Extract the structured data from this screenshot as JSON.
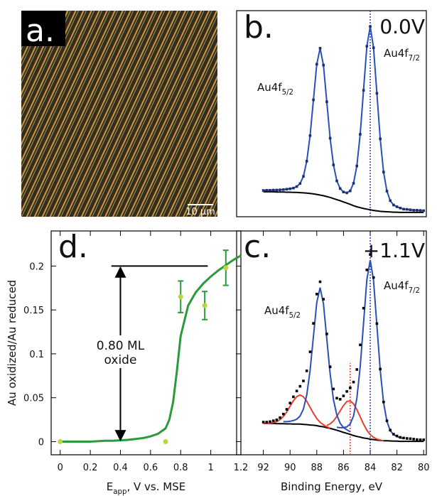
{
  "panel_a": {
    "label": "a.",
    "scale_bar": "10 µm"
  },
  "chart_data": [
    {
      "type": "line",
      "label": "b.",
      "condition": "0.0V",
      "peaks": [
        {
          "main": "Au4f",
          "sub": "5/2"
        },
        {
          "main": "Au4f",
          "sub": "7/2"
        }
      ],
      "x": [
        92,
        91.75,
        91.5,
        91.25,
        91,
        90.75,
        90.5,
        90.25,
        90,
        89.75,
        89.5,
        89.25,
        89,
        88.75,
        88.5,
        88.25,
        88,
        87.75,
        87.5,
        87.25,
        87,
        86.75,
        86.5,
        86.25,
        86,
        85.75,
        85.5,
        85.25,
        85,
        84.75,
        84.5,
        84.25,
        84,
        83.75,
        83.5,
        83.25,
        83,
        82.75,
        82.5,
        82.25,
        82,
        81.75,
        81.5,
        81.25,
        81,
        80.75,
        80.5,
        80.25,
        80
      ],
      "xlim": [
        94,
        79.8
      ],
      "ylim": [
        0,
        0.95
      ],
      "series": [
        {
          "color": "#000000",
          "values": [
            0.115,
            0.115,
            0.115,
            0.115,
            0.114,
            0.114,
            0.114,
            0.113,
            0.113,
            0.112,
            0.112,
            0.111,
            0.11,
            0.109,
            0.107,
            0.105,
            0.103,
            0.1,
            0.097,
            0.093,
            0.089,
            0.084,
            0.079,
            0.074,
            0.068,
            0.063,
            0.057,
            0.051,
            0.046,
            0.042,
            0.038,
            0.035,
            0.032,
            0.029,
            0.027,
            0.025,
            0.024,
            0.023,
            0.022,
            0.021,
            0.021,
            0.02,
            0.02,
            0.02,
            0.02,
            0.02,
            0.02,
            0.02,
            0.02
          ]
        },
        {
          "color": "#2b4fb8",
          "markers": true,
          "values": [
            0.121,
            0.122,
            0.122,
            0.123,
            0.123,
            0.124,
            0.125,
            0.127,
            0.129,
            0.132,
            0.139,
            0.153,
            0.186,
            0.256,
            0.374,
            0.539,
            0.703,
            0.777,
            0.699,
            0.53,
            0.362,
            0.239,
            0.165,
            0.13,
            0.114,
            0.11,
            0.119,
            0.154,
            0.234,
            0.38,
            0.583,
            0.786,
            0.877,
            0.779,
            0.569,
            0.359,
            0.206,
            0.118,
            0.074,
            0.054,
            0.046,
            0.04,
            0.035,
            0.034,
            0.032,
            0.03,
            0.03,
            0.029,
            0.028
          ]
        }
      ],
      "vlines": [
        {
          "x": 84,
          "color": "#1f3bd1"
        }
      ]
    },
    {
      "type": "line",
      "label": "c.",
      "condition": "+1.1V",
      "peaks": [
        {
          "main": "Au4f",
          "sub": "5/2"
        },
        {
          "main": "Au4f",
          "sub": "7/2"
        }
      ],
      "x": [
        92,
        91.75,
        91.5,
        91.25,
        91,
        90.75,
        90.5,
        90.25,
        90,
        89.75,
        89.5,
        89.25,
        89,
        88.75,
        88.5,
        88.25,
        88,
        87.75,
        87.5,
        87.25,
        87,
        86.75,
        86.5,
        86.25,
        86,
        85.75,
        85.5,
        85.25,
        85,
        84.75,
        84.5,
        84.25,
        84,
        83.75,
        83.5,
        83.25,
        83,
        82.75,
        82.5,
        82.25,
        82,
        81.75,
        81.5,
        81.25,
        81,
        80.75,
        80.5,
        80.25,
        80
      ],
      "xlim": [
        94,
        79.8
      ],
      "ylim": [
        0,
        1
      ],
      "xticks": [
        92,
        90,
        88,
        86,
        84,
        82,
        80
      ],
      "xlabel": "Binding Energy, eV",
      "series": [
        {
          "color": "#000000",
          "values": [
            0.14,
            0.14,
            0.14,
            0.14,
            0.139,
            0.139,
            0.139,
            0.138,
            0.138,
            0.137,
            0.137,
            0.137,
            0.136,
            0.135,
            0.133,
            0.132,
            0.13,
            0.127,
            0.125,
            0.121,
            0.118,
            0.114,
            0.11,
            0.105,
            0.1,
            0.096,
            0.091,
            0.086,
            0.082,
            0.079,
            0.075,
            0.073,
            0.07,
            0.068,
            0.066,
            0.064,
            0.063,
            0.063,
            0.062,
            0.061,
            0.061,
            0.06,
            0.06,
            0.06,
            0.06,
            0.06,
            0.06,
            0.06,
            0.06
          ]
        },
        {
          "color": "#e8412c",
          "values": [
            0.14,
            0.14,
            0.141,
            0.144,
            0.148,
            0.157,
            0.171,
            0.191,
            0.217,
            0.241,
            0.26,
            0.267,
            0.259,
            0.239,
            0.212,
            0.185,
            0.162,
            0.145,
            0.134,
            0.125,
            0.119,
            null,
            null,
            null,
            null,
            null,
            null,
            null,
            null,
            null,
            null,
            null,
            null,
            null,
            null,
            null,
            null,
            null,
            null,
            null,
            null,
            null,
            null,
            null,
            null,
            null,
            null,
            null,
            null
          ]
        },
        {
          "color": "#e8412c",
          "values": [
            null,
            null,
            null,
            null,
            null,
            null,
            null,
            null,
            null,
            null,
            null,
            null,
            null,
            null,
            null,
            null,
            null,
            null,
            null,
            0.131,
            0.138,
            0.151,
            0.172,
            0.196,
            0.22,
            0.238,
            0.241,
            0.228,
            0.202,
            0.17,
            0.137,
            0.11,
            0.09,
            0.078,
            0.07,
            0.066,
            0.063,
            null,
            null,
            null,
            null,
            null,
            null,
            null,
            null,
            null,
            null,
            null,
            null
          ]
        },
        {
          "color": "#2b4fb8",
          "values": [
            null,
            null,
            null,
            null,
            null,
            null,
            0.148,
            0.148,
            0.15,
            0.153,
            0.159,
            0.173,
            0.204,
            0.267,
            0.377,
            0.529,
            0.68,
            0.747,
            0.675,
            0.518,
            0.362,
            0.246,
            0.178,
            0.141,
            0.122,
            0.112,
            0.103,
            null,
            null,
            null,
            null,
            null,
            null,
            null,
            null,
            null,
            null,
            null,
            null,
            null,
            null,
            null,
            null,
            null,
            null,
            null,
            null,
            null,
            null
          ]
        },
        {
          "color": "#2b4fb8",
          "values": [
            null,
            null,
            null,
            null,
            null,
            null,
            null,
            null,
            null,
            null,
            null,
            null,
            null,
            null,
            null,
            null,
            null,
            null,
            null,
            null,
            null,
            null,
            0.123,
            0.121,
            0.121,
            0.125,
            0.137,
            0.173,
            0.252,
            0.393,
            0.587,
            0.783,
            0.87,
            0.778,
            0.578,
            0.378,
            0.233,
            0.15,
            0.108,
            0.09,
            0.082,
            0.076,
            0.073,
            null,
            null,
            null,
            null,
            null,
            null
          ]
        },
        {
          "color": "#000000",
          "markers": true,
          "line": false,
          "values": [
            0.146,
            0.146,
            0.148,
            0.152,
            0.156,
            0.166,
            0.182,
            0.203,
            0.231,
            0.259,
            0.285,
            0.306,
            0.33,
            0.375,
            0.46,
            0.587,
            0.718,
            0.773,
            0.695,
            0.54,
            0.393,
            0.294,
            0.253,
            0.248,
            0.263,
            0.283,
            0.299,
            0.325,
            0.381,
            0.491,
            0.655,
            0.826,
            0.895,
            0.792,
            0.586,
            0.383,
            0.236,
            0.152,
            0.11,
            0.092,
            0.084,
            0.078,
            0.075,
            0.073,
            0.072,
            0.07,
            0.068,
            0.067,
            0.067
          ]
        }
      ],
      "vlines": [
        {
          "x": 84,
          "color": "#1f3bd1"
        },
        {
          "x": 85.5,
          "color": "#e8412c",
          "ymax": 0.41
        }
      ]
    },
    {
      "type": "scatter",
      "label": "d.",
      "xlabel": {
        "main": "E",
        "sub": "app",
        "rest": ", V vs. MSE"
      },
      "ylabel": "Au oxidized/Au reduced",
      "xlim": [
        -0.06,
        1.2
      ],
      "ylim": [
        -0.015,
        0.24
      ],
      "xticks": [
        0,
        0.2,
        0.4,
        0.6,
        0.8,
        1,
        1.2
      ],
      "yticks": [
        0,
        0.05,
        0.1,
        0.15,
        0.2
      ],
      "series": [
        {
          "color": "#2a9a3a",
          "x": [
            0,
            0.05,
            0.1,
            0.15,
            0.2,
            0.25,
            0.3,
            0.35,
            0.4,
            0.45,
            0.5,
            0.55,
            0.6,
            0.65,
            0.7,
            0.725,
            0.75,
            0.775,
            0.8,
            0.85,
            0.9,
            0.95,
            1,
            1.05,
            1.1,
            1.15,
            1.2
          ],
          "values": [
            0,
            0,
            0,
            0,
            0,
            0.0005,
            0.001,
            0.001,
            0.0015,
            0.002,
            0.003,
            0.004,
            0.006,
            0.009,
            0.015,
            0.025,
            0.045,
            0.08,
            0.12,
            0.155,
            0.17,
            0.18,
            0.188,
            0.195,
            0.201,
            0.207,
            0.212
          ]
        },
        {
          "color": "#b9d63a",
          "error_color": "#2a9a3a",
          "x": [
            0,
            0.7,
            0.8,
            0.96,
            1.1
          ],
          "values": [
            0,
            0,
            0.165,
            0.155,
            0.198
          ],
          "errors": [
            null,
            null,
            0.018,
            0.016,
            0.02
          ]
        }
      ],
      "annotation": {
        "text": [
          "0.80 ML",
          "oxide"
        ],
        "x": 0.4,
        "y": [
          0,
          0.2
        ],
        "line_x": [
          0.34,
          0.98
        ]
      }
    }
  ]
}
